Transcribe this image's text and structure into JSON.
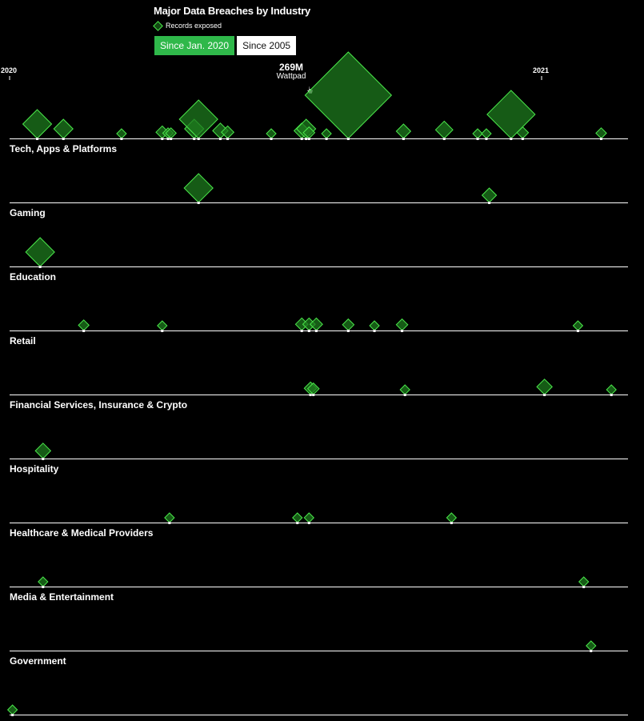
{
  "title": "Major Data Breaches by Industry",
  "legend": {
    "label": "Records exposed",
    "icon": "diamond-icon"
  },
  "toggle": {
    "options": [
      "Since Jan. 2020",
      "Since 2005"
    ],
    "selected": "Since Jan. 2020"
  },
  "annotation": {
    "value": "269M",
    "name": "Wattpad"
  },
  "colors": {
    "fill": "#1e7a1e",
    "stroke": "#4be84b",
    "background": "#000000",
    "axis": "#ffffff"
  },
  "chart_data": {
    "type": "scatter",
    "x_axis": {
      "type": "date",
      "range": [
        "2020-01-01",
        "2021-05-01"
      ],
      "tick_labels": [
        "2020",
        "2021"
      ]
    },
    "size_encoding": "Records exposed",
    "grid": false,
    "series": [
      {
        "name": "Tech, Apps & Platforms",
        "points": [
          {
            "x": "2020-01-20",
            "r": 3
          },
          {
            "x": "2020-02-07",
            "r": 2
          },
          {
            "x": "2020-03-18",
            "r": 1
          },
          {
            "x": "2020-04-15",
            "r": 1.3
          },
          {
            "x": "2020-04-19",
            "r": 1.1
          },
          {
            "x": "2020-04-21",
            "r": 1.1
          },
          {
            "x": "2020-05-07",
            "r": 2
          },
          {
            "x": "2020-05-10",
            "r": 4
          },
          {
            "x": "2020-05-25",
            "r": 1.6
          },
          {
            "x": "2020-05-30",
            "r": 1.3
          },
          {
            "x": "2020-06-29",
            "r": 1
          },
          {
            "x": "2020-07-20",
            "r": 1.6
          },
          {
            "x": "2020-07-23",
            "r": 2
          },
          {
            "x": "2020-07-25",
            "r": 1.2
          },
          {
            "x": "2020-08-06",
            "r": 1
          },
          {
            "x": "2020-08-21",
            "r": 9
          },
          {
            "x": "2020-09-28",
            "r": 1.5
          },
          {
            "x": "2020-10-26",
            "r": 1.8
          },
          {
            "x": "2020-11-18",
            "r": 1
          },
          {
            "x": "2020-11-24",
            "r": 1
          },
          {
            "x": "2020-12-11",
            "r": 5
          },
          {
            "x": "2020-12-19",
            "r": 1.2
          },
          {
            "x": "2021-02-11",
            "r": 1.1
          },
          {
            "x": "2021-04-18",
            "r": 3
          },
          {
            "x": "2021-04-23",
            "r": 2
          }
        ]
      },
      {
        "name": "Gaming",
        "points": [
          {
            "x": "2020-05-10",
            "r": 3
          },
          {
            "x": "2020-11-26",
            "r": 1.5
          }
        ]
      },
      {
        "name": "Education",
        "points": [
          {
            "x": "2020-01-22",
            "r": 3
          }
        ]
      },
      {
        "name": "Retail",
        "points": [
          {
            "x": "2020-02-21",
            "r": 1.1
          },
          {
            "x": "2020-04-15",
            "r": 1
          },
          {
            "x": "2020-07-20",
            "r": 1.3
          },
          {
            "x": "2020-07-25",
            "r": 1.3
          },
          {
            "x": "2020-07-30",
            "r": 1.3
          },
          {
            "x": "2020-08-21",
            "r": 1.2
          },
          {
            "x": "2020-09-08",
            "r": 1
          },
          {
            "x": "2020-09-27",
            "r": 1.2
          },
          {
            "x": "2021-01-26",
            "r": 1
          }
        ]
      },
      {
        "name": "Financial Services, Insurance & Crypto",
        "points": [
          {
            "x": "2020-07-26",
            "r": 1.3
          },
          {
            "x": "2020-07-28",
            "r": 1.2
          },
          {
            "x": "2020-09-29",
            "r": 1
          },
          {
            "x": "2021-01-03",
            "r": 1.6
          },
          {
            "x": "2021-02-18",
            "r": 1
          }
        ]
      },
      {
        "name": "Hospitality",
        "points": [
          {
            "x": "2020-01-24",
            "r": 1.6
          }
        ]
      },
      {
        "name": "Healthcare & Medical Providers",
        "points": [
          {
            "x": "2020-04-20",
            "r": 1
          },
          {
            "x": "2020-07-17",
            "r": 1
          },
          {
            "x": "2020-07-25",
            "r": 1
          },
          {
            "x": "2020-10-31",
            "r": 1
          }
        ]
      },
      {
        "name": "Media & Entertainment",
        "points": [
          {
            "x": "2020-01-24",
            "r": 1
          },
          {
            "x": "2021-01-30",
            "r": 1
          },
          {
            "x": "2021-03-19",
            "r": 1
          }
        ]
      },
      {
        "name": "Government",
        "points": [
          {
            "x": "2021-02-04",
            "r": 1
          }
        ]
      },
      {
        "name": "",
        "points": [
          {
            "x": "2020-01-03",
            "r": 1
          }
        ]
      }
    ]
  }
}
